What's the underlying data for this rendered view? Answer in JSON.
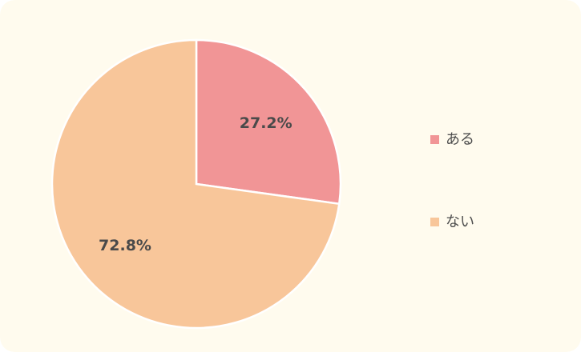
{
  "chart_data": {
    "type": "pie",
    "categories": [
      "ある",
      "ない"
    ],
    "values": [
      27.2,
      72.8
    ],
    "labels": [
      "27.2%",
      "72.8%"
    ],
    "colors": [
      "#f19596",
      "#f8c69a"
    ],
    "background": "#fffbee",
    "legend_position": "right",
    "title": ""
  }
}
